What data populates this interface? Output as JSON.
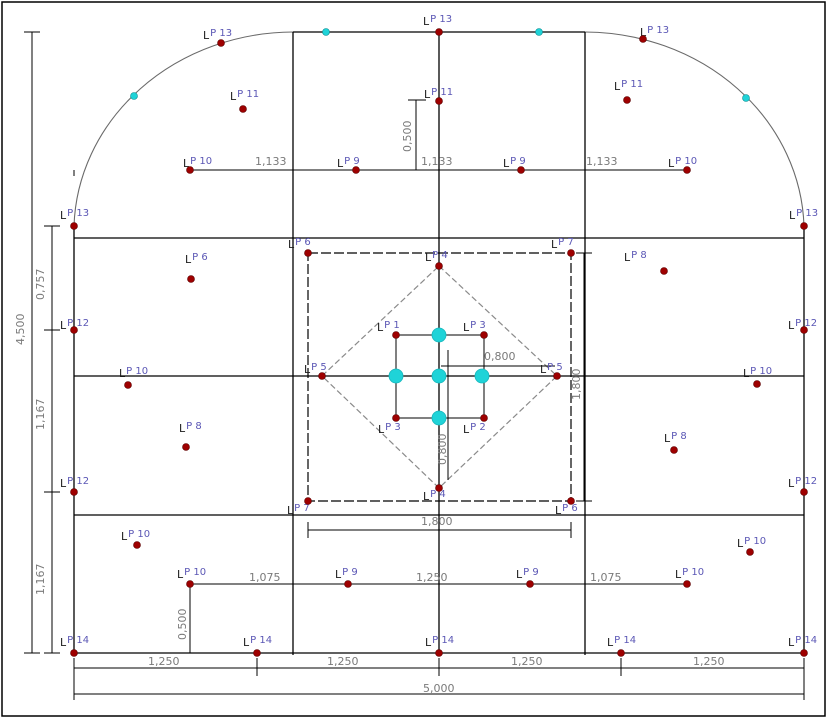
{
  "colors": {
    "point_red": "#9e0000",
    "point_cyan": "#1fd3d8",
    "label_blue": "#5b57b5",
    "dim_text": "#7a7a7a"
  },
  "dimensions": {
    "total_height": "4,500",
    "left_757": "0,757",
    "left_1167_a": "1,167",
    "left_1167_b": "1,167",
    "top_500": "0,500",
    "bottom_500": "0,500",
    "top_1133_a": "1,133",
    "top_1133_b": "1,133",
    "top_1133_c": "1,133",
    "bottom_1075_a": "1,075",
    "bottom_1250": "1,250",
    "bottom_1075_b": "1,075",
    "base_1250_a": "1,250",
    "base_1250_b": "1,250",
    "base_1250_c": "1,250",
    "base_1250_d": "1,250",
    "total_width": "5,000",
    "inner_1800": "1,800",
    "center_800": "0,800",
    "right_1800": "1,800",
    "center_vert": "0,800"
  },
  "lp_labels": [
    {
      "id": "lp13-tl",
      "L": "L",
      "text": "P  13"
    },
    {
      "id": "lp13-tc",
      "L": "L",
      "text": "P  13"
    },
    {
      "id": "lp13-tr",
      "L": "L",
      "text": "P  13"
    },
    {
      "id": "lp11-l",
      "L": "L",
      "text": "P  11"
    },
    {
      "id": "lp11-c",
      "L": "L",
      "text": "P  11"
    },
    {
      "id": "lp11-r",
      "L": "L",
      "text": "P  11"
    },
    {
      "id": "lp10-tl",
      "L": "L",
      "text": "P  10"
    },
    {
      "id": "lp9-tl",
      "L": "L",
      "text": "P  9"
    },
    {
      "id": "lp9-tr",
      "L": "L",
      "text": "P  9"
    },
    {
      "id": "lp10-tr",
      "L": "L",
      "text": "P  10"
    },
    {
      "id": "lp13-ml",
      "L": "L",
      "text": "P  13"
    },
    {
      "id": "lp13-mr",
      "L": "L",
      "text": "P  13"
    },
    {
      "id": "lp6-l",
      "L": "L",
      "text": "P  6"
    },
    {
      "id": "lp6-in",
      "L": "L",
      "text": "P  6"
    },
    {
      "id": "lp4-t",
      "L": "L",
      "text": "P  4"
    },
    {
      "id": "lp7-in",
      "L": "L",
      "text": "P  7"
    },
    {
      "id": "lp8-r",
      "L": "L",
      "text": "P  8"
    },
    {
      "id": "lp12-l1",
      "L": "L",
      "text": "P  12"
    },
    {
      "id": "lp12-r1",
      "L": "L",
      "text": "P  12"
    },
    {
      "id": "lp1",
      "L": "L",
      "text": "P  1"
    },
    {
      "id": "lp3-t",
      "L": "L",
      "text": "P  3"
    },
    {
      "id": "lp10-ml",
      "L": "L",
      "text": "P  10"
    },
    {
      "id": "lp5-l",
      "L": "L",
      "text": "P  5"
    },
    {
      "id": "lp5-r",
      "L": "L",
      "text": "P  5"
    },
    {
      "id": "lp10-mr",
      "L": "L",
      "text": "P  10"
    },
    {
      "id": "lp3-b",
      "L": "L",
      "text": "P  3"
    },
    {
      "id": "lp2",
      "L": "L",
      "text": "P  2"
    },
    {
      "id": "lp8-l",
      "L": "L",
      "text": "P  8"
    },
    {
      "id": "lp8-r2",
      "L": "L",
      "text": "P  8"
    },
    {
      "id": "lp12-l2",
      "L": "L",
      "text": "P  12"
    },
    {
      "id": "lp12-r2",
      "L": "L",
      "text": "P  12"
    },
    {
      "id": "lp7-b",
      "L": "L",
      "text": "P  7"
    },
    {
      "id": "lp4-b",
      "L": "L",
      "text": "P  4"
    },
    {
      "id": "lp6-b",
      "L": "L",
      "text": "P  6"
    },
    {
      "id": "lp10-bl",
      "L": "L",
      "text": "P  10"
    },
    {
      "id": "lp10-br",
      "L": "L",
      "text": "P  10"
    },
    {
      "id": "lp10-bl2",
      "L": "L",
      "text": "P  10"
    },
    {
      "id": "lp9-bl",
      "L": "L",
      "text": "P  9"
    },
    {
      "id": "lp9-br",
      "L": "L",
      "text": "P  9"
    },
    {
      "id": "lp10-br2",
      "L": "L",
      "text": "P  10"
    },
    {
      "id": "lp14-1",
      "L": "L",
      "text": "P  14"
    },
    {
      "id": "lp14-2",
      "L": "L",
      "text": "P  14"
    },
    {
      "id": "lp14-3",
      "L": "L",
      "text": "P  14"
    },
    {
      "id": "lp14-4",
      "L": "L",
      "text": "P  14"
    },
    {
      "id": "lp14-5",
      "L": "L",
      "text": "P  14"
    }
  ]
}
